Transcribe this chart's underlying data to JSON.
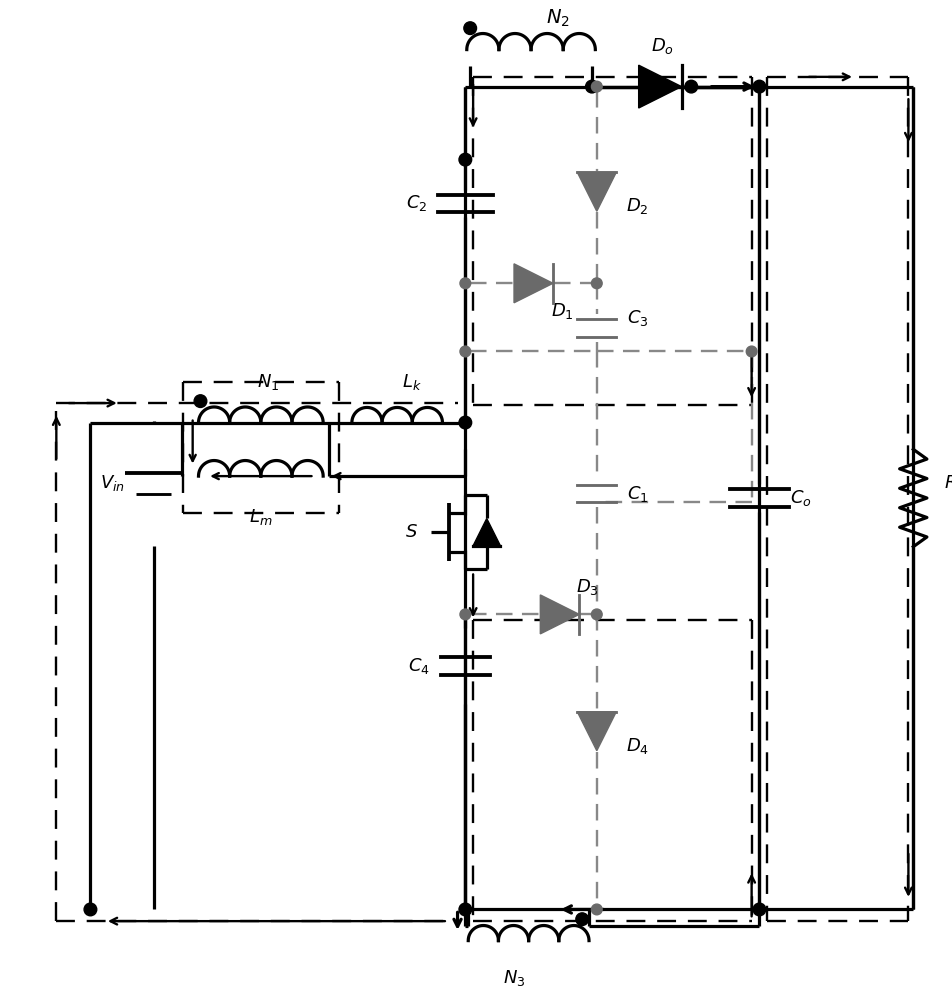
{
  "bg": "#ffffff",
  "blk": "#000000",
  "gray": "#6a6a6a",
  "gdash": "#888888",
  "lw": 2.3,
  "ldw": 1.7
}
